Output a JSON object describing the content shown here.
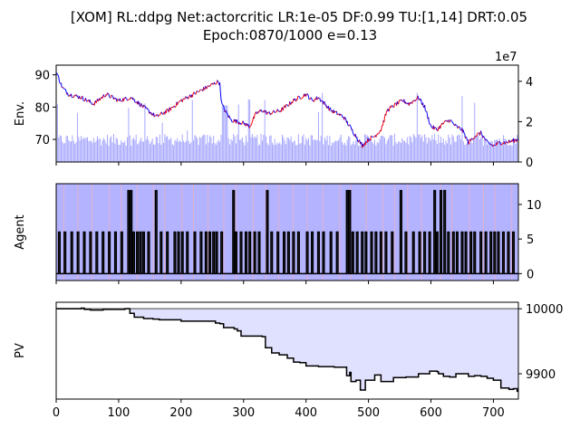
{
  "title_line1": "[XOM] RL:ddpg Net:actorcritic LR:1e-05 DF:0.99 TU:[1,14] DRT:0.05",
  "title_line2": "Epoch:0870/1000 e=0.13",
  "colors": {
    "price_up": "#ff0000",
    "price_down": "#0000ff",
    "volume": "#0000ff",
    "agent_fill": "#b3b3ff",
    "agent_line": "#000000",
    "pv_fill": "#e0e0ff",
    "pv_line": "#000000",
    "baseline": "#808080"
  },
  "chart_data": [
    {
      "type": "line",
      "panel": "env",
      "ylabel": "Env.",
      "ylim": [
        63,
        93
      ],
      "yticks": [
        70,
        80,
        90
      ],
      "right_axis": {
        "ylim": [
          0,
          48000000
        ],
        "ticks": [
          0,
          2,
          4
        ],
        "offset_label": "1e7"
      },
      "xlim": [
        0,
        740
      ],
      "price_points": [
        [
          0,
          91
        ],
        [
          10,
          86
        ],
        [
          20,
          84
        ],
        [
          40,
          83
        ],
        [
          60,
          81
        ],
        [
          80,
          84
        ],
        [
          100,
          82
        ],
        [
          120,
          83
        ],
        [
          140,
          80
        ],
        [
          160,
          77
        ],
        [
          180,
          79
        ],
        [
          200,
          82
        ],
        [
          220,
          84
        ],
        [
          240,
          86
        ],
        [
          260,
          88
        ],
        [
          262,
          87
        ],
        [
          265,
          81
        ],
        [
          270,
          79
        ],
        [
          280,
          76
        ],
        [
          300,
          75
        ],
        [
          310,
          74
        ],
        [
          320,
          78
        ],
        [
          330,
          79
        ],
        [
          340,
          78
        ],
        [
          360,
          79
        ],
        [
          380,
          82
        ],
        [
          400,
          84
        ],
        [
          410,
          82
        ],
        [
          420,
          83
        ],
        [
          440,
          79
        ],
        [
          460,
          77
        ],
        [
          470,
          74
        ],
        [
          480,
          71
        ],
        [
          490,
          68
        ],
        [
          500,
          70
        ],
        [
          510,
          71
        ],
        [
          520,
          73
        ],
        [
          530,
          79
        ],
        [
          545,
          81
        ],
        [
          555,
          82
        ],
        [
          565,
          81
        ],
        [
          580,
          83
        ],
        [
          590,
          80
        ],
        [
          600,
          74
        ],
        [
          610,
          73
        ],
        [
          620,
          75
        ],
        [
          630,
          76
        ],
        [
          640,
          74
        ],
        [
          650,
          73
        ],
        [
          660,
          69
        ],
        [
          670,
          71
        ],
        [
          680,
          72
        ],
        [
          690,
          69
        ],
        [
          700,
          68
        ],
        [
          710,
          69
        ],
        [
          720,
          69
        ],
        [
          740,
          70
        ]
      ],
      "volume_note": "daily volume bars on right axis (x1e7), mostly around 1.1e7 with spikes up to 3.5e7"
    },
    {
      "type": "line",
      "panel": "agent",
      "ylabel": "Agent",
      "ylim": [
        -1,
        13
      ],
      "yticks": [
        0,
        5,
        10
      ],
      "xlim": [
        0,
        740
      ],
      "spikes": [
        [
          5,
          6
        ],
        [
          14,
          6
        ],
        [
          25,
          6
        ],
        [
          35,
          6
        ],
        [
          45,
          6
        ],
        [
          55,
          6
        ],
        [
          65,
          6
        ],
        [
          75,
          6
        ],
        [
          85,
          6
        ],
        [
          95,
          6
        ],
        [
          105,
          6
        ],
        [
          116,
          12
        ],
        [
          120,
          12
        ],
        [
          124,
          6
        ],
        [
          130,
          6
        ],
        [
          135,
          6
        ],
        [
          140,
          6
        ],
        [
          148,
          6
        ],
        [
          160,
          12
        ],
        [
          168,
          6
        ],
        [
          178,
          6
        ],
        [
          190,
          6
        ],
        [
          196,
          6
        ],
        [
          202,
          6
        ],
        [
          210,
          6
        ],
        [
          222,
          6
        ],
        [
          232,
          6
        ],
        [
          240,
          6
        ],
        [
          246,
          6
        ],
        [
          252,
          6
        ],
        [
          257,
          6
        ],
        [
          265,
          6
        ],
        [
          284,
          12
        ],
        [
          288,
          6
        ],
        [
          296,
          6
        ],
        [
          304,
          6
        ],
        [
          310,
          6
        ],
        [
          318,
          6
        ],
        [
          325,
          6
        ],
        [
          338,
          12
        ],
        [
          345,
          6
        ],
        [
          355,
          6
        ],
        [
          365,
          6
        ],
        [
          372,
          6
        ],
        [
          380,
          6
        ],
        [
          388,
          6
        ],
        [
          402,
          6
        ],
        [
          410,
          6
        ],
        [
          420,
          6
        ],
        [
          428,
          6
        ],
        [
          440,
          6
        ],
        [
          450,
          6
        ],
        [
          466,
          12
        ],
        [
          470,
          12
        ],
        [
          475,
          6
        ],
        [
          482,
          6
        ],
        [
          490,
          6
        ],
        [
          496,
          6
        ],
        [
          505,
          6
        ],
        [
          512,
          6
        ],
        [
          520,
          6
        ],
        [
          528,
          6
        ],
        [
          538,
          6
        ],
        [
          552,
          12
        ],
        [
          560,
          6
        ],
        [
          572,
          6
        ],
        [
          582,
          6
        ],
        [
          590,
          6
        ],
        [
          598,
          6
        ],
        [
          606,
          12
        ],
        [
          610,
          6
        ],
        [
          616,
          12
        ],
        [
          622,
          12
        ],
        [
          628,
          6
        ],
        [
          636,
          6
        ],
        [
          642,
          6
        ],
        [
          650,
          6
        ],
        [
          656,
          6
        ],
        [
          664,
          6
        ],
        [
          670,
          6
        ],
        [
          680,
          6
        ],
        [
          688,
          6
        ],
        [
          696,
          6
        ],
        [
          702,
          6
        ],
        [
          708,
          6
        ],
        [
          716,
          6
        ],
        [
          724,
          6
        ],
        [
          732,
          6
        ]
      ]
    },
    {
      "type": "line",
      "panel": "pv",
      "ylabel": "PV",
      "ylim": [
        9861,
        10010
      ],
      "yticks": [
        9900,
        10000
      ],
      "baseline": 10000,
      "xlim": [
        0,
        740
      ],
      "xticks": [
        0,
        100,
        200,
        300,
        400,
        500,
        600,
        700
      ],
      "points": [
        [
          0,
          10000
        ],
        [
          40,
          10001
        ],
        [
          45,
          9999
        ],
        [
          55,
          9998
        ],
        [
          75,
          9999
        ],
        [
          110,
          10000
        ],
        [
          118,
          9993
        ],
        [
          125,
          9987
        ],
        [
          140,
          9985
        ],
        [
          155,
          9984
        ],
        [
          165,
          9983
        ],
        [
          200,
          9981
        ],
        [
          255,
          9978
        ],
        [
          262,
          9977
        ],
        [
          268,
          9971
        ],
        [
          285,
          9969
        ],
        [
          290,
          9966
        ],
        [
          296,
          9958
        ],
        [
          330,
          9957
        ],
        [
          335,
          9940
        ],
        [
          345,
          9932
        ],
        [
          357,
          9929
        ],
        [
          370,
          9924
        ],
        [
          380,
          9918
        ],
        [
          390,
          9917
        ],
        [
          400,
          9912
        ],
        [
          420,
          9911
        ],
        [
          445,
          9910
        ],
        [
          462,
          9910
        ],
        [
          465,
          9897
        ],
        [
          470,
          9902
        ],
        [
          472,
          9888
        ],
        [
          480,
          9890
        ],
        [
          487,
          9875
        ],
        [
          492,
          9875
        ],
        [
          495,
          9890
        ],
        [
          510,
          9898
        ],
        [
          520,
          9888
        ],
        [
          540,
          9894
        ],
        [
          560,
          9895
        ],
        [
          580,
          9900
        ],
        [
          598,
          9904
        ],
        [
          610,
          9903
        ],
        [
          612,
          9900
        ],
        [
          620,
          9896
        ],
        [
          630,
          9895
        ],
        [
          640,
          9900
        ],
        [
          660,
          9896
        ],
        [
          670,
          9897
        ],
        [
          680,
          9896
        ],
        [
          690,
          9893
        ],
        [
          700,
          9890
        ],
        [
          712,
          9878
        ],
        [
          725,
          9876
        ],
        [
          732,
          9877
        ],
        [
          738,
          9873
        ]
      ]
    }
  ]
}
